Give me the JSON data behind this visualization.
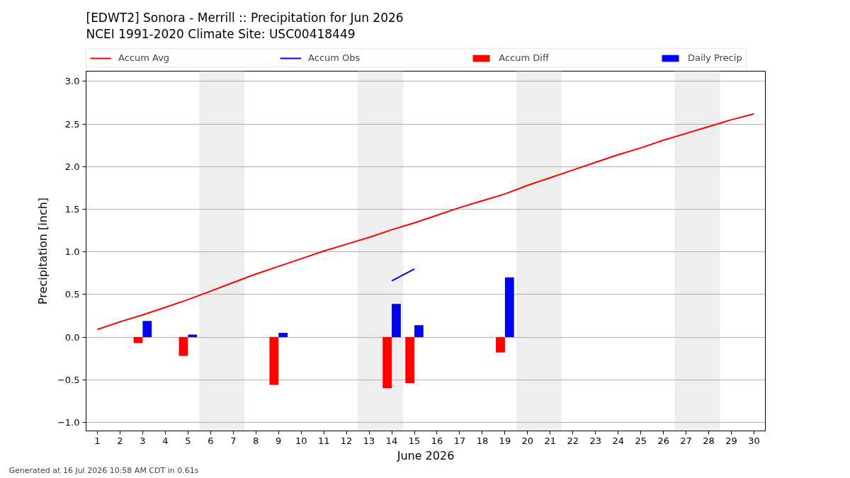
{
  "chart_data": {
    "type": "bar",
    "title": "[EDWT2] Sonora - Merrill :: Precipitation for Jun 2026",
    "subtitle": "NCEI 1991-2020 Climate Site: USC00418449",
    "xlabel": "June 2026",
    "ylabel": "Precipitation [inch]",
    "annotations": [
      "Generated at 16 Jul 2026 10:58 AM CDT in 0.61s"
    ],
    "x": [
      1,
      2,
      3,
      4,
      5,
      6,
      7,
      8,
      9,
      10,
      11,
      12,
      13,
      14,
      15,
      16,
      17,
      18,
      19,
      20,
      21,
      22,
      23,
      24,
      25,
      26,
      27,
      28,
      29,
      30
    ],
    "series": [
      {
        "name": "Accum Avg",
        "type": "line",
        "color": "#ff0000",
        "values": [
          0.09,
          0.18,
          0.26,
          0.35,
          0.44,
          0.54,
          0.64,
          0.74,
          0.83,
          0.92,
          1.01,
          1.09,
          1.17,
          1.26,
          1.34,
          1.43,
          1.52,
          1.6,
          1.68,
          1.78,
          1.87,
          1.96,
          2.05,
          2.14,
          2.22,
          2.31,
          2.39,
          2.47,
          2.55,
          2.62
        ]
      },
      {
        "name": "Accum Obs",
        "type": "line",
        "color": "#0000ff",
        "values": [
          null,
          null,
          null,
          null,
          null,
          null,
          null,
          null,
          null,
          null,
          null,
          null,
          null,
          0.66,
          0.8,
          null,
          null,
          null,
          null,
          null,
          null,
          null,
          null,
          null,
          null,
          null,
          null,
          null,
          null,
          null
        ]
      },
      {
        "name": "Accum Diff",
        "color": "#ff0000",
        "values": [
          null,
          null,
          -0.07,
          null,
          -0.22,
          null,
          null,
          null,
          -0.56,
          null,
          null,
          null,
          null,
          -0.6,
          -0.54,
          null,
          null,
          null,
          -0.18,
          null,
          null,
          null,
          null,
          null,
          null,
          null,
          null,
          null,
          null,
          null
        ]
      },
      {
        "name": "Daily Precip",
        "color": "#0000ff",
        "values": [
          null,
          null,
          0.19,
          null,
          0.03,
          null,
          null,
          null,
          0.05,
          null,
          null,
          null,
          null,
          0.39,
          0.14,
          null,
          null,
          null,
          0.7,
          null,
          null,
          null,
          null,
          null,
          null,
          null,
          null,
          null,
          null,
          null
        ]
      }
    ],
    "xlim": [
      0.5,
      30.5
    ],
    "ylim": [
      -1.1,
      3.12
    ],
    "xticks": [
      1,
      2,
      3,
      4,
      5,
      6,
      7,
      8,
      9,
      10,
      11,
      12,
      13,
      14,
      15,
      16,
      17,
      18,
      19,
      20,
      21,
      22,
      23,
      24,
      25,
      26,
      27,
      28,
      29,
      30
    ],
    "yticks": [
      {
        "value": -1,
        "label": "−1.0"
      },
      {
        "value": -0.5,
        "label": "−0.5"
      },
      {
        "value": 0,
        "label": "0.0"
      },
      0.5,
      {
        "value": 1,
        "label": "1.0"
      },
      1.5,
      {
        "value": 2,
        "label": "2.0"
      },
      2.5,
      {
        "value": 3,
        "label": "3.0"
      }
    ],
    "grid": "y",
    "legend": "top",
    "bands": [
      {
        "axis": "x",
        "from": 5.5,
        "to": 7.5,
        "color": "#eeeeee"
      },
      {
        "axis": "x",
        "from": 12.5,
        "to": 14.5,
        "color": "#eeeeee"
      },
      {
        "axis": "x",
        "from": 19.5,
        "to": 21.5,
        "color": "#eeeeee"
      },
      {
        "axis": "x",
        "from": 26.5,
        "to": 28.5,
        "color": "#eeeeee"
      }
    ]
  }
}
